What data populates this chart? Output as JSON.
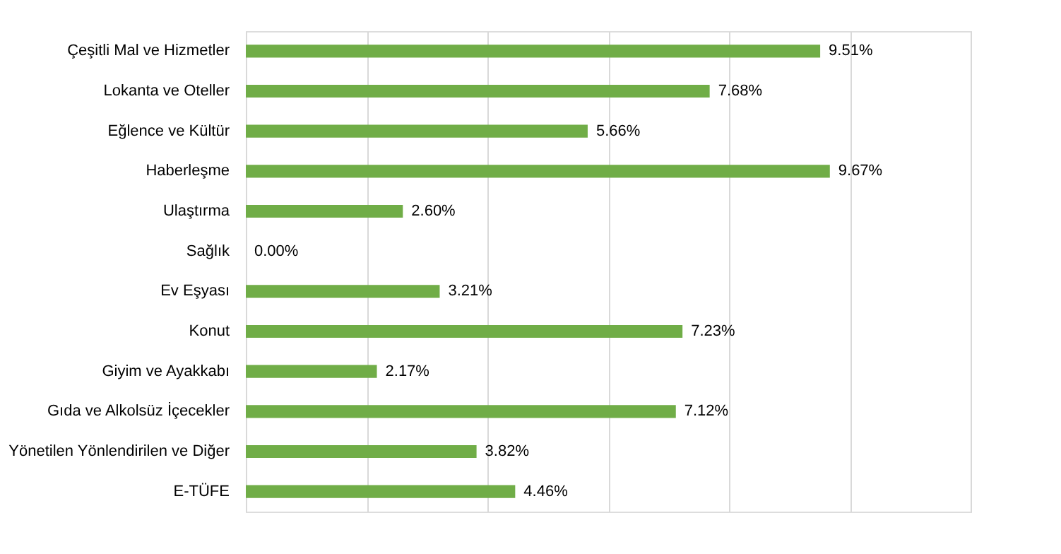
{
  "chart_data": {
    "type": "bar",
    "orientation": "horizontal",
    "categories": [
      "Çeşitli Mal ve Hizmetler",
      "Lokanta ve Oteller",
      "Eğlence ve Kültür",
      "Haberleşme",
      "Ulaştırma",
      "Sağlık",
      "Ev Eşyası",
      "Konut",
      "Giyim ve Ayakkabı",
      "Gıda ve Alkolsüz İçecekler",
      "Yönetilen Yönlendirilen ve Diğer",
      "E-TÜFE"
    ],
    "values": [
      9.51,
      7.68,
      5.66,
      9.67,
      2.6,
      0.0,
      3.21,
      7.23,
      2.17,
      7.12,
      3.82,
      4.46
    ],
    "value_labels": [
      "9.51%",
      "7.68%",
      "5.66%",
      "9.67%",
      "2.60%",
      "0.00%",
      "3.21%",
      "7.23%",
      "2.17%",
      "7.12%",
      "3.82%",
      "4.46%"
    ],
    "color": "#70ad47",
    "xlim": [
      0,
      12
    ],
    "xticks": [
      {
        "value": 0,
        "label": null
      },
      {
        "value": 2,
        "label": null
      },
      {
        "value": 4,
        "label": null
      },
      {
        "value": 6,
        "label": null
      },
      {
        "value": 8,
        "label": null
      },
      {
        "value": 10,
        "label": null
      },
      {
        "value": 12,
        "label": null
      }
    ],
    "grid": "x",
    "tick_labels": "y"
  }
}
